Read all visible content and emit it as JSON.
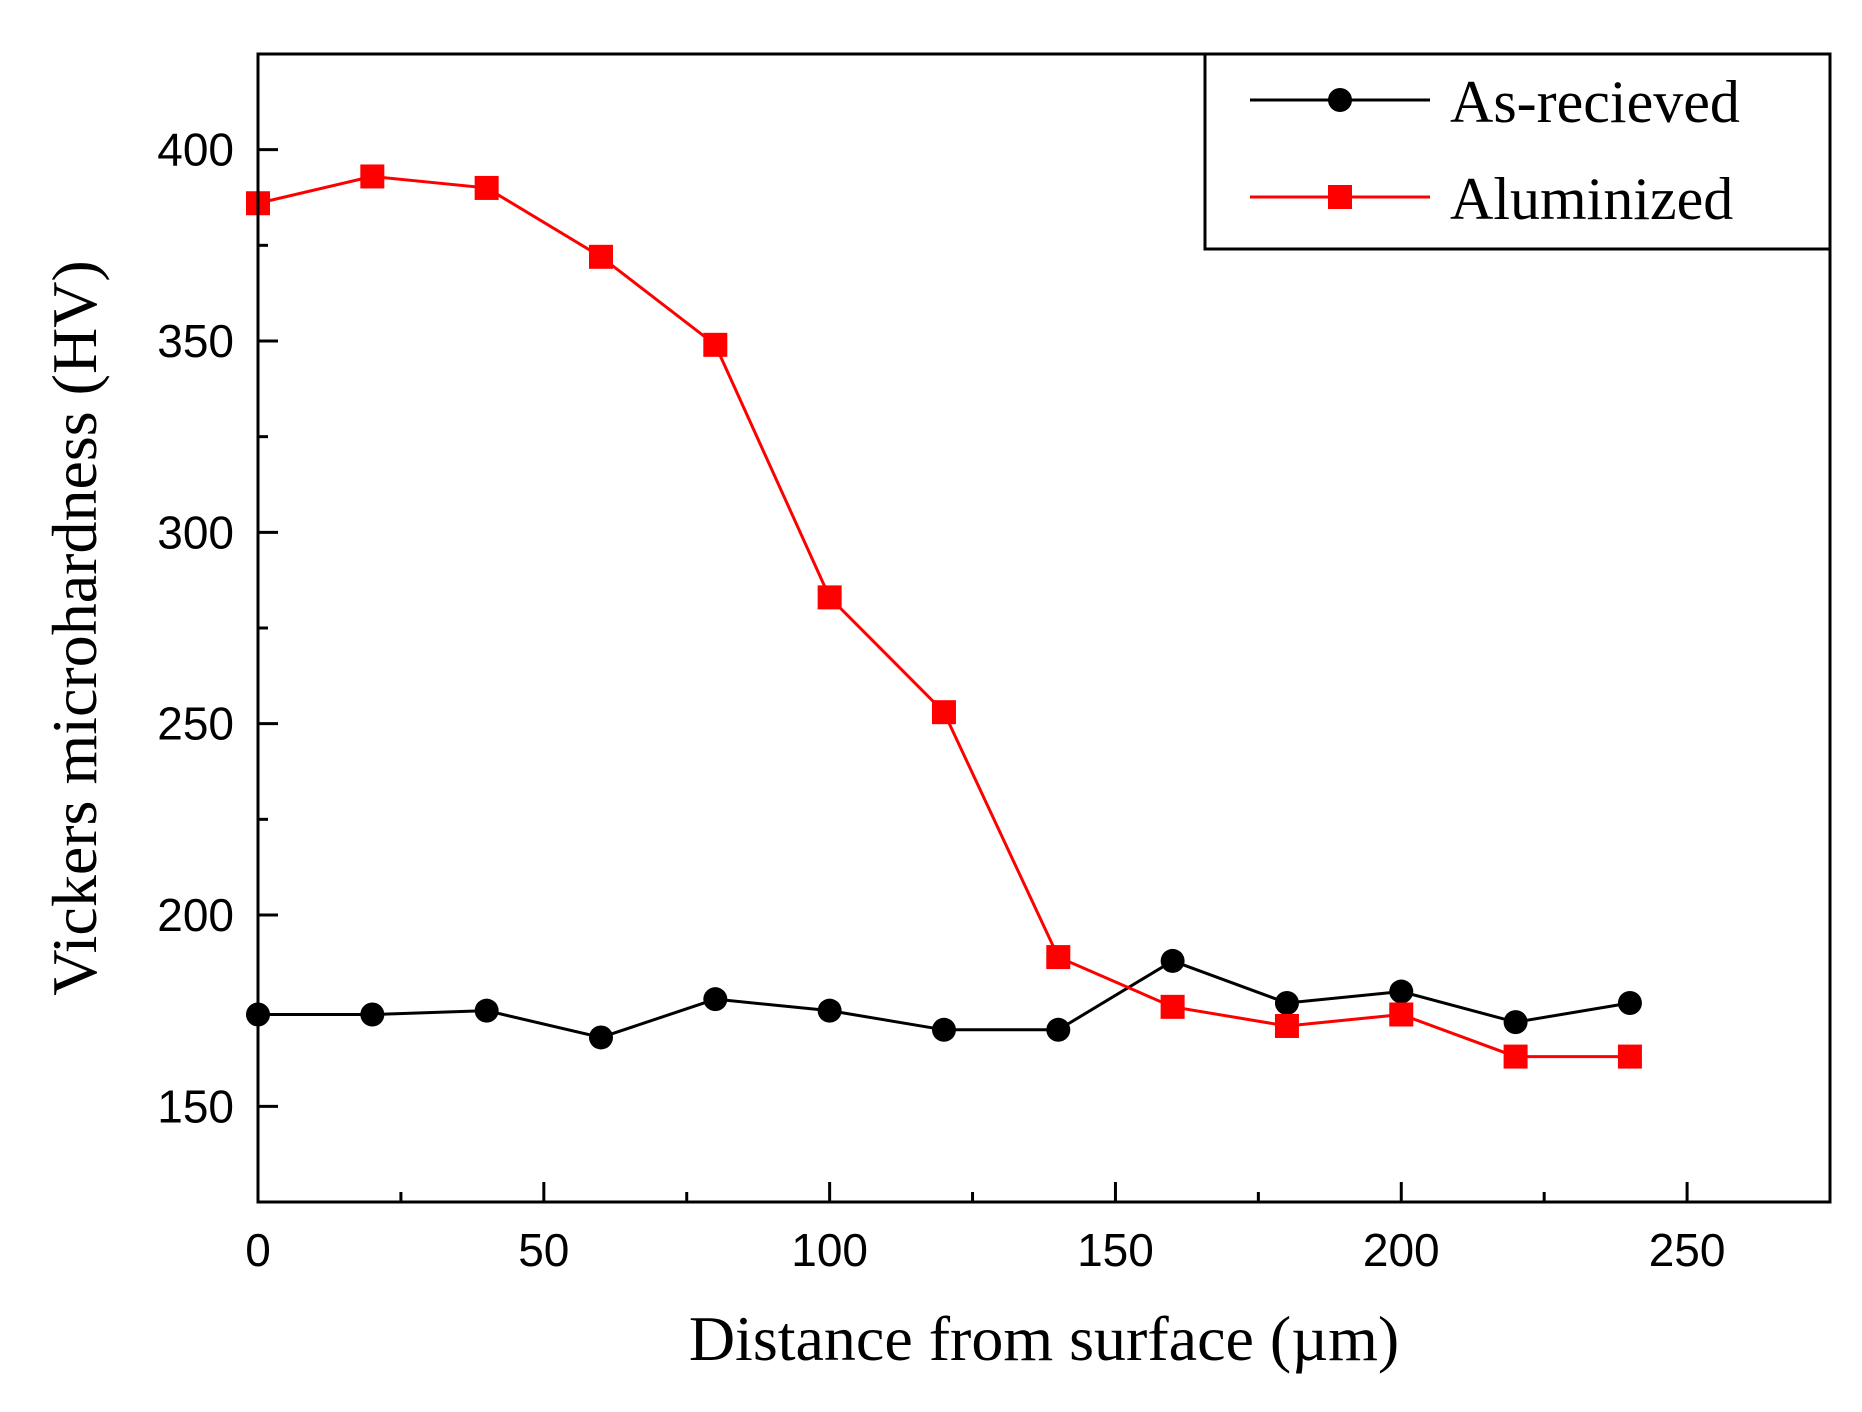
{
  "chart_data": {
    "type": "line",
    "title": "",
    "xlabel": "Distance from surface (µm)",
    "ylabel": "Vickers microhardness (HV)",
    "xlim": [
      0,
      275
    ],
    "ylim": [
      125,
      425
    ],
    "xticks": [
      0,
      50,
      100,
      150,
      200,
      250
    ],
    "yticks": [
      150,
      200,
      250,
      300,
      350,
      400
    ],
    "legend_position": "top-right",
    "series": [
      {
        "name": "As-recieved",
        "color": "#000000",
        "marker": "circle",
        "x": [
          0,
          20,
          40,
          60,
          80,
          100,
          120,
          140,
          160,
          180,
          200,
          220,
          240
        ],
        "y": [
          174,
          174,
          175,
          168,
          178,
          175,
          170,
          170,
          188,
          177,
          180,
          172,
          177
        ]
      },
      {
        "name": "Aluminized",
        "color": "#ff0000",
        "marker": "square",
        "x": [
          0,
          20,
          40,
          60,
          80,
          100,
          120,
          140,
          160,
          180,
          200,
          220,
          240
        ],
        "y": [
          386,
          393,
          390,
          372,
          349,
          283,
          253,
          189,
          176,
          171,
          174,
          163,
          163
        ]
      }
    ]
  }
}
